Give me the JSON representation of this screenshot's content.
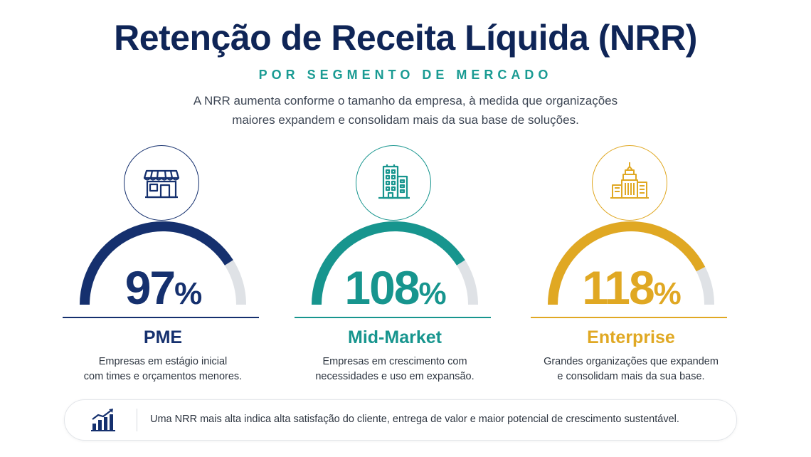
{
  "header": {
    "title": "Retenção de Receita Líquida (NRR)",
    "subtitle": "POR SEGMENTO DE MERCADO",
    "description_line1": "A NRR aumenta conforme o tamanho da empresa, à medida que organizações",
    "description_line2": "maiores expandem e consolidam mais da sua base de soluções."
  },
  "segments": [
    {
      "name": "PME",
      "value": "97",
      "unit": "%",
      "gauge_fill_fraction": 0.82,
      "color": "#15306e",
      "icon": "storefront-icon",
      "desc_line1": "Empresas em estágio inicial",
      "desc_line2": "com times e orçamentos menores."
    },
    {
      "name": "Mid-Market",
      "value": "108",
      "unit": "%",
      "gauge_fill_fraction": 0.82,
      "color": "#17958e",
      "icon": "office-building-icon",
      "desc_line1": "Empresas em crescimento com",
      "desc_line2": "necessidades e uso em expansão."
    },
    {
      "name": "Enterprise",
      "value": "118",
      "unit": "%",
      "gauge_fill_fraction": 0.85,
      "color": "#e0a823",
      "icon": "skyscraper-icon",
      "desc_line1": "Grandes organizações que expandem",
      "desc_line2": "e consolidam mais da sua base."
    }
  ],
  "footer": {
    "icon": "growth-chart-icon",
    "text": "Uma NRR mais alta indica alta satisfação do cliente, entrega de valor e maior potencial de crescimento sustentável."
  },
  "colors": {
    "title": "#0f2557",
    "accent_teal": "#1a9b93",
    "gauge_track": "#dfe2e6"
  }
}
